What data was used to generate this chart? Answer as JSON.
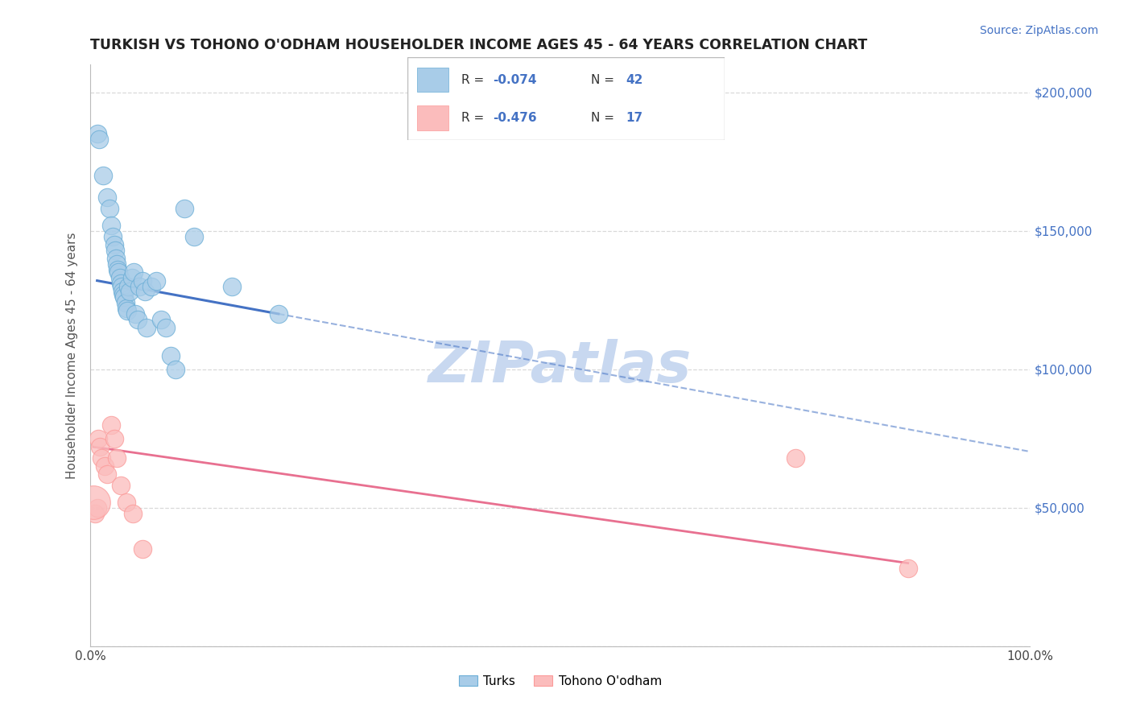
{
  "title": "TURKISH VS TOHONO O'ODHAM HOUSEHOLDER INCOME AGES 45 - 64 YEARS CORRELATION CHART",
  "source": "Source: ZipAtlas.com",
  "ylabel": "Householder Income Ages 45 - 64 years",
  "xlim": [
    0,
    1.0
  ],
  "ylim": [
    0,
    210000
  ],
  "xticks": [
    0.0,
    0.1,
    0.2,
    0.3,
    0.4,
    0.5,
    0.6,
    0.7,
    0.8,
    0.9,
    1.0
  ],
  "xticklabels": [
    "0.0%",
    "",
    "",
    "",
    "",
    "",
    "",
    "",
    "",
    "",
    "100.0%"
  ],
  "yticks": [
    0,
    50000,
    100000,
    150000,
    200000
  ],
  "right_yticklabels": [
    "",
    "$50,000",
    "$100,000",
    "$150,000",
    "$200,000"
  ],
  "turks_color": "#a8cce8",
  "turks_edge_color": "#6baed6",
  "tohono_color": "#fbbcbc",
  "tohono_edge_color": "#fb9a99",
  "turks_R": -0.074,
  "turks_N": 42,
  "tohono_R": -0.476,
  "tohono_N": 17,
  "legend_label_turks": "Turks",
  "legend_label_tohono": "Tohono O'odham",
  "turks_x": [
    0.007,
    0.009,
    0.013,
    0.018,
    0.02,
    0.022,
    0.024,
    0.025,
    0.026,
    0.027,
    0.028,
    0.029,
    0.03,
    0.031,
    0.032,
    0.033,
    0.034,
    0.035,
    0.036,
    0.037,
    0.038,
    0.039,
    0.04,
    0.042,
    0.044,
    0.046,
    0.048,
    0.05,
    0.052,
    0.055,
    0.058,
    0.06,
    0.065,
    0.07,
    0.075,
    0.08,
    0.085,
    0.09,
    0.1,
    0.11,
    0.15,
    0.2
  ],
  "turks_y": [
    185000,
    183000,
    170000,
    162000,
    158000,
    152000,
    148000,
    145000,
    143000,
    140000,
    138000,
    136000,
    135000,
    133000,
    131000,
    130000,
    128000,
    127000,
    126000,
    124000,
    122000,
    121000,
    130000,
    128000,
    133000,
    135000,
    120000,
    118000,
    130000,
    132000,
    128000,
    115000,
    130000,
    132000,
    118000,
    115000,
    105000,
    100000,
    158000,
    148000,
    130000,
    120000
  ],
  "tohono_x": [
    0.003,
    0.005,
    0.007,
    0.008,
    0.01,
    0.012,
    0.015,
    0.018,
    0.022,
    0.025,
    0.028,
    0.032,
    0.038,
    0.045,
    0.055,
    0.75,
    0.87
  ],
  "tohono_y": [
    52000,
    48000,
    50000,
    75000,
    72000,
    68000,
    65000,
    62000,
    80000,
    75000,
    68000,
    58000,
    52000,
    48000,
    35000,
    68000,
    28000
  ],
  "tohono_large_idx": 0,
  "grid_color": "#d0d0d0",
  "background_color": "#ffffff",
  "turks_line_color": "#4472c4",
  "tohono_line_color": "#e87090",
  "title_color": "#222222",
  "source_color": "#4472c4",
  "legend_value_color": "#4472c4",
  "watermark_color": "#c8d8f0",
  "watermark_text": "ZIPatlas"
}
